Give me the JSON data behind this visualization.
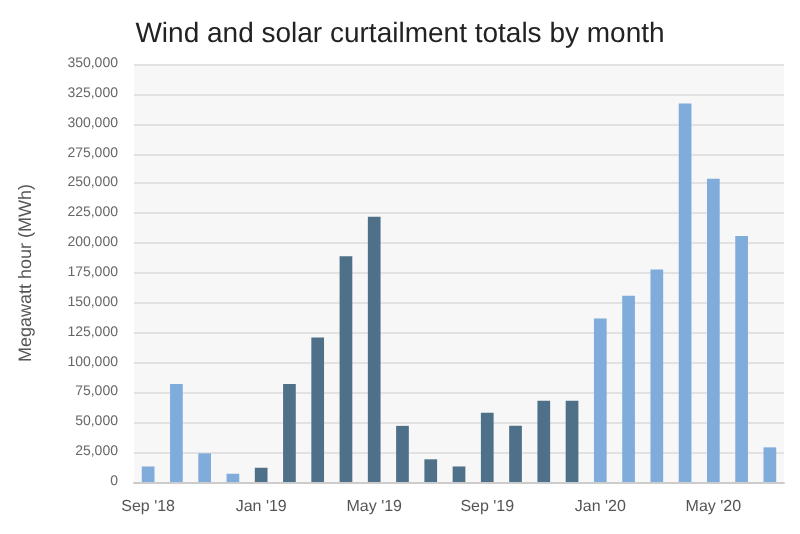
{
  "chart_data": {
    "type": "bar",
    "title": "Wind and solar curtailment totals by month",
    "ylabel": "Megawatt hour (MWh)",
    "categories": [
      "Sep '18",
      null,
      null,
      null,
      "Jan '19",
      null,
      null,
      null,
      "May '19",
      null,
      null,
      null,
      "Sep '19",
      null,
      null,
      null,
      "Jan '20",
      null,
      null,
      null,
      "May '20",
      null,
      null
    ],
    "values": [
      13000,
      82000,
      24000,
      7000,
      12000,
      82000,
      121000,
      189000,
      222000,
      47000,
      19000,
      13000,
      58000,
      47000,
      68000,
      68000,
      137000,
      156000,
      178000,
      317000,
      254000,
      206000,
      29000
    ],
    "colors": [
      "#80acdb",
      "#80acdb",
      "#80acdb",
      "#80acdb",
      "#4e7189",
      "#4e7189",
      "#4e7189",
      "#4e7189",
      "#4e7189",
      "#4e7189",
      "#4e7189",
      "#4e7189",
      "#4e7189",
      "#4e7189",
      "#4e7189",
      "#4e7189",
      "#80acdb",
      "#80acdb",
      "#80acdb",
      "#80acdb",
      "#80acdb",
      "#80acdb",
      "#80acdb"
    ],
    "ylim": [
      0,
      350000
    ],
    "yticks": [
      0,
      {
        "value": 25000,
        "label": "25,000"
      },
      {
        "value": 50000,
        "label": "50,000"
      },
      {
        "value": 75000,
        "label": "75,000"
      },
      {
        "value": 100000,
        "label": "100,000"
      },
      {
        "value": 125000,
        "label": "125,000"
      },
      {
        "value": 150000,
        "label": "150,000"
      },
      {
        "value": 175000,
        "label": "175,000"
      },
      {
        "value": 200000,
        "label": "200,000"
      },
      {
        "value": 225000,
        "label": "225,000"
      },
      {
        "value": 250000,
        "label": "250,000"
      },
      {
        "value": 275000,
        "label": "275,000"
      },
      {
        "value": 300000,
        "label": "300,000"
      },
      {
        "value": 325000,
        "label": "325,000"
      },
      {
        "value": 350000,
        "label": "350,000"
      }
    ],
    "grid": "y"
  }
}
